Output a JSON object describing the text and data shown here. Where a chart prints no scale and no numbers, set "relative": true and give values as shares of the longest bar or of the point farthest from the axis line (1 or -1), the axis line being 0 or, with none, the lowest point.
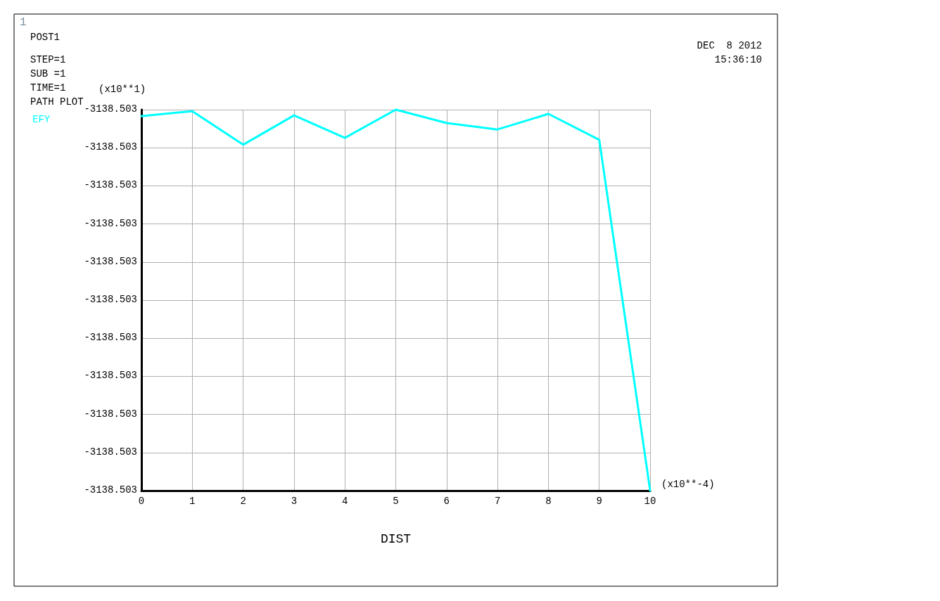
{
  "chart_data": {
    "type": "line",
    "xlabel": "DIST",
    "relative": true,
    "x": [
      0,
      1,
      2,
      3,
      4,
      5,
      6,
      7,
      8,
      9,
      10
    ],
    "series": [
      {
        "name": "EFY",
        "color": "#00ffff",
        "values": [
          0.983,
          0.996,
          0.908,
          0.985,
          0.926,
          1,
          0.965,
          0.948,
          0.989,
          0.921,
          0
        ]
      }
    ],
    "xlim": [
      0,
      10
    ],
    "xticks": [
      0,
      1,
      2,
      3,
      4,
      5,
      6,
      7,
      8,
      9,
      10
    ],
    "grid": true,
    "legend": "top left",
    "marker": "none",
    "line_style": "solid",
    "annotations": [
      "1",
      "POST1",
      "STEP=1",
      "SUB =1",
      "TIME=1",
      "PATH PLOT",
      "DEC  8 2012",
      "15:36:10",
      "(x10**1)",
      "(x10**-4)",
      "-3138.503",
      "-3138.503",
      "-3138.503",
      "-3138.503",
      "-3138.503",
      "-3138.503",
      "-3138.503",
      "-3138.503",
      "-3138.503",
      "-3138.503",
      "-3138.503"
    ]
  }
}
